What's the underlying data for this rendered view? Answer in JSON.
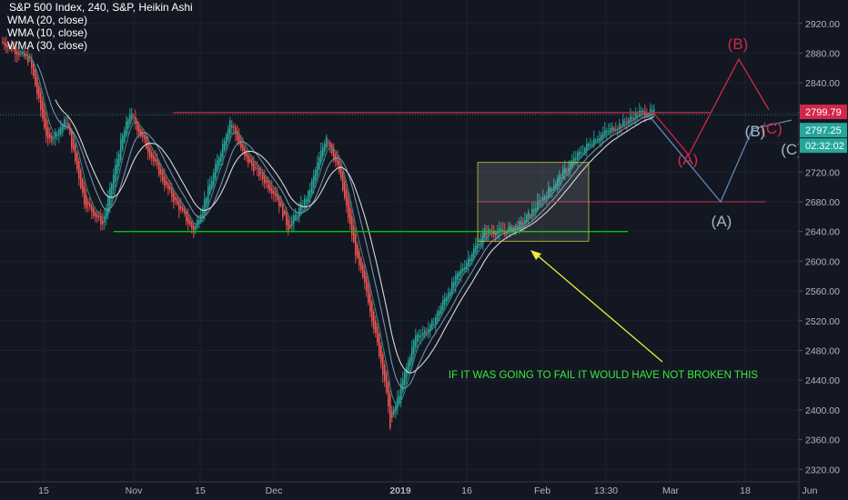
{
  "header": {
    "symbol_line": "S&P 500 Index, 240, S&P, Heikin Ashi",
    "indicators": [
      "WMA (20, close)",
      "WMA (10, close)",
      "WMA (30, close)"
    ]
  },
  "colors": {
    "background": "#131722",
    "up_candle": "#26a69a",
    "down_candle": "#ef5350",
    "support_line": "#00c800",
    "resistance_line": "#d0284a",
    "target_line": "#a0284a",
    "wave_red": "#d0284a",
    "wave_blue": "#5b8ab8",
    "annotation_text": "#3ee83e",
    "arrow": "#ecec3a",
    "box": "#c8c832"
  },
  "chart_data": {
    "type": "candlestick",
    "chart_style": "Heikin Ashi",
    "yscale": "linear",
    "ylim": [
      2310,
      2945
    ],
    "y_ticks": [
      "2920.00",
      "2880.00",
      "2840.00",
      "2800.00",
      "2760.00",
      "2720.00",
      "2680.00",
      "2640.00",
      "2600.00",
      "2560.00",
      "2520.00",
      "2480.00",
      "2440.00",
      "2400.00",
      "2360.00",
      "2320.00"
    ],
    "x_ticks": [
      "15",
      "Nov",
      "15",
      "Dec",
      "2019",
      "16",
      "Feb",
      "13:30",
      "Mar",
      "18",
      "Jun"
    ],
    "series": [
      {
        "name": "S&P 500 Index",
        "kind": "candles",
        "approx_path": [
          [
            0,
            2895
          ],
          [
            15,
            2870
          ],
          [
            25,
            2760
          ],
          [
            35,
            2790
          ],
          [
            45,
            2680
          ],
          [
            55,
            2650
          ],
          [
            65,
            2760
          ],
          [
            70,
            2800
          ],
          [
            80,
            2750
          ],
          [
            90,
            2700
          ],
          [
            100,
            2660
          ],
          [
            105,
            2640
          ],
          [
            115,
            2710
          ],
          [
            125,
            2790
          ],
          [
            133,
            2740
          ],
          [
            140,
            2720
          ],
          [
            150,
            2690
          ],
          [
            157,
            2645
          ],
          [
            168,
            2690
          ],
          [
            178,
            2770
          ],
          [
            185,
            2720
          ],
          [
            190,
            2660
          ],
          [
            195,
            2600
          ],
          [
            200,
            2560
          ],
          [
            205,
            2500
          ],
          [
            210,
            2440
          ],
          [
            213,
            2380
          ],
          [
            220,
            2440
          ],
          [
            227,
            2500
          ],
          [
            235,
            2510
          ],
          [
            245,
            2560
          ],
          [
            255,
            2600
          ],
          [
            265,
            2640
          ],
          [
            275,
            2640
          ],
          [
            285,
            2650
          ],
          [
            295,
            2680
          ],
          [
            305,
            2710
          ],
          [
            315,
            2740
          ],
          [
            325,
            2765
          ],
          [
            340,
            2785
          ],
          [
            350,
            2800
          ],
          [
            357,
            2800
          ]
        ]
      },
      {
        "name": "WMA (20, close)",
        "kind": "line"
      },
      {
        "name": "WMA (10, close)",
        "kind": "line"
      },
      {
        "name": "WMA (30, close)",
        "kind": "line"
      }
    ],
    "price_labels": [
      {
        "text": "2799.79",
        "value": 2799.79,
        "color": "#d0284a"
      },
      {
        "text": "2797.25",
        "value": 2797.25,
        "color": "#26a69a"
      },
      {
        "text": "02:32:02",
        "value": 2780,
        "color": "#26a69a"
      }
    ],
    "horizontal_lines": [
      {
        "value": 2640,
        "color": "#00c800"
      },
      {
        "value": 2800,
        "color": "#d0284a"
      },
      {
        "value": 2680,
        "color": "#a0284a"
      }
    ],
    "annotations": {
      "note": "IF IT WAS GOING TO FAIL IT WOULD HAVE NOT BROKEN THIS",
      "red_wave_labels": [
        "(A)",
        "(B)",
        "(C)"
      ],
      "blue_wave_labels": [
        "(A)",
        "(B)",
        "(C)"
      ]
    }
  }
}
